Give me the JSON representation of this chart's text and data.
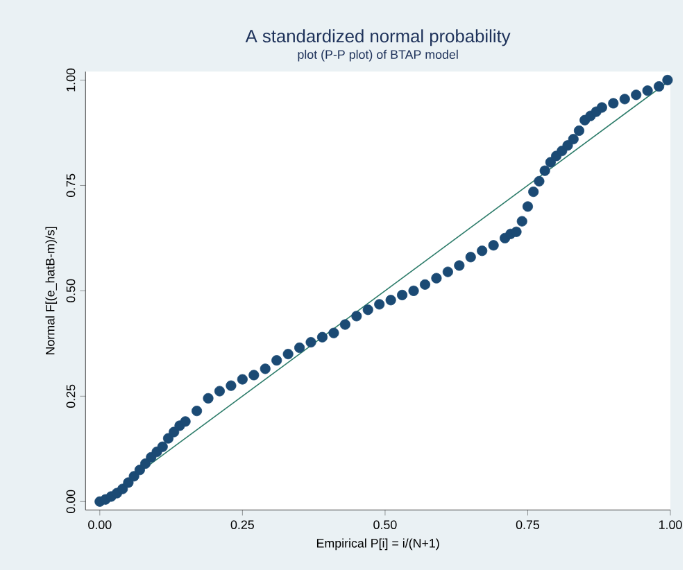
{
  "chart_data": {
    "type": "scatter",
    "title": "A standardized normal probability",
    "subtitle": "plot (P-P plot) of BTAP model",
    "xlabel": "Empirical P[i] = i/(N+1)",
    "ylabel": "Normal F[(e_hatB-m)/s]",
    "xlim": [
      -0.025,
      1.0
    ],
    "ylim": [
      -0.02,
      1.02
    ],
    "xticks": [
      {
        "value": 0,
        "label": "0.00"
      },
      {
        "value": 0.25,
        "label": "0.25"
      },
      {
        "value": 0.5,
        "label": "0.50"
      },
      {
        "value": 0.75,
        "label": "0.75"
      },
      {
        "value": 1,
        "label": "1.00"
      }
    ],
    "yticks": [
      {
        "value": 0,
        "label": "0.00"
      },
      {
        "value": 0.25,
        "label": "0.25"
      },
      {
        "value": 0.5,
        "label": "0.50"
      },
      {
        "value": 0.75,
        "label": "0.75"
      },
      {
        "value": 1,
        "label": "1.00"
      }
    ],
    "grid": false,
    "series": [
      {
        "color": "#1b4a74",
        "marker": "circle",
        "x": [
          0,
          0.01,
          0.02,
          0.03,
          0.04,
          0.05,
          0.06,
          0.07,
          0.08,
          0.09,
          0.1,
          0.11,
          0.12,
          0.13,
          0.14,
          0.15,
          0.17,
          0.19,
          0.21,
          0.23,
          0.25,
          0.27,
          0.29,
          0.31,
          0.33,
          0.35,
          0.37,
          0.39,
          0.41,
          0.43,
          0.45,
          0.47,
          0.49,
          0.51,
          0.53,
          0.55,
          0.57,
          0.59,
          0.61,
          0.63,
          0.65,
          0.67,
          0.69,
          0.71,
          0.72,
          0.73,
          0.74,
          0.75,
          0.76,
          0.77,
          0.78,
          0.79,
          0.8,
          0.81,
          0.82,
          0.83,
          0.84,
          0.85,
          0.86,
          0.87,
          0.88,
          0.9,
          0.92,
          0.94,
          0.96,
          0.98,
          0.995
        ],
        "values": [
          0,
          0.005,
          0.012,
          0.02,
          0.03,
          0.045,
          0.06,
          0.075,
          0.09,
          0.105,
          0.118,
          0.13,
          0.15,
          0.165,
          0.18,
          0.19,
          0.215,
          0.245,
          0.262,
          0.275,
          0.29,
          0.3,
          0.315,
          0.335,
          0.35,
          0.365,
          0.378,
          0.39,
          0.4,
          0.42,
          0.44,
          0.455,
          0.468,
          0.478,
          0.49,
          0.5,
          0.515,
          0.53,
          0.545,
          0.56,
          0.58,
          0.595,
          0.608,
          0.625,
          0.635,
          0.64,
          0.665,
          0.7,
          0.735,
          0.76,
          0.785,
          0.805,
          0.82,
          0.832,
          0.845,
          0.86,
          0.88,
          0.905,
          0.915,
          0.925,
          0.935,
          0.945,
          0.955,
          0.965,
          0.975,
          0.985,
          1.0
        ]
      },
      {
        "type": "line",
        "color": "#2e7d6b",
        "marker": "none",
        "x": [
          0,
          1
        ],
        "values": [
          0,
          1
        ]
      }
    ]
  }
}
